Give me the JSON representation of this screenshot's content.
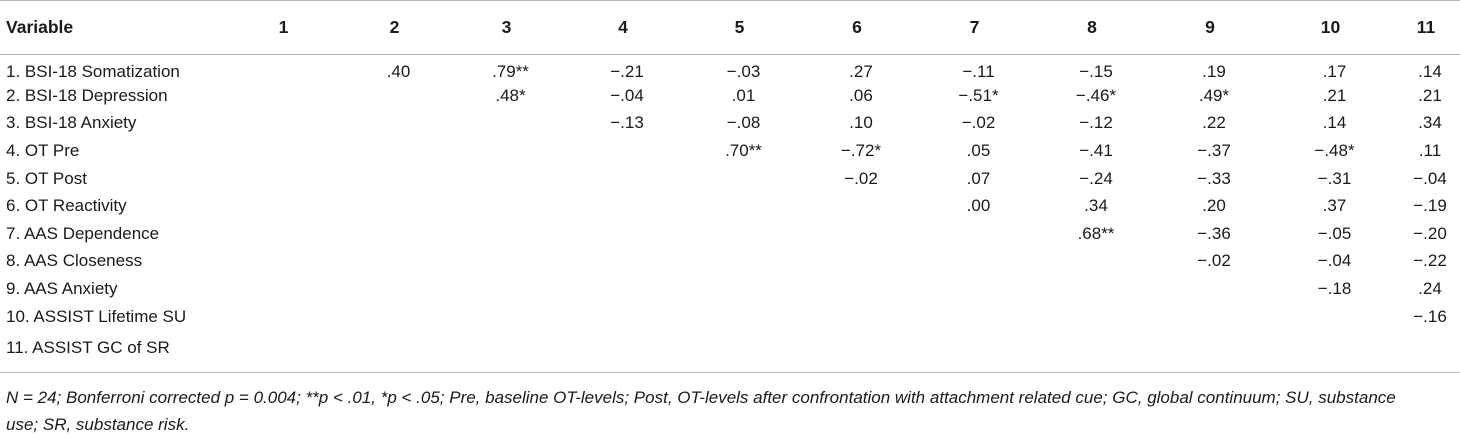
{
  "table": {
    "headers": [
      "Variable",
      "1",
      "2",
      "3",
      "4",
      "5",
      "6",
      "7",
      "8",
      "9",
      "10",
      "11"
    ],
    "rows": [
      {
        "label": "1. BSI-18 Somatization",
        "cells": [
          "",
          ".40",
          ".79**",
          "−.21",
          "−.03",
          ".27",
          "−.11",
          "−.15",
          ".19",
          ".17",
          ".14"
        ]
      },
      {
        "label": "2. BSI-18 Depression",
        "cells": [
          "",
          "",
          ".48*",
          "−.04",
          ".01",
          ".06",
          "−.51*",
          "−.46*",
          ".49*",
          ".21",
          ".21"
        ]
      },
      {
        "label": "3. BSI-18 Anxiety",
        "cells": [
          "",
          "",
          "",
          "−.13",
          "−.08",
          ".10",
          "−.02",
          "−.12",
          ".22",
          ".14",
          ".34"
        ]
      },
      {
        "label": "4. OT Pre",
        "cells": [
          "",
          "",
          "",
          "",
          ".70**",
          "−.72*",
          ".05",
          "−.41",
          "−.37",
          "−.48*",
          ".11"
        ]
      },
      {
        "label": "5. OT Post",
        "cells": [
          "",
          "",
          "",
          "",
          "",
          "−.02",
          ".07",
          "−.24",
          "−.33",
          "−.31",
          "−.04"
        ]
      },
      {
        "label": "6. OT Reactivity",
        "cells": [
          "",
          "",
          "",
          "",
          "",
          "",
          ".00",
          ".34",
          ".20",
          ".37",
          "−.19"
        ]
      },
      {
        "label": "7. AAS Dependence",
        "cells": [
          "",
          "",
          "",
          "",
          "",
          "",
          "",
          ".68**",
          "−.36",
          "−.05",
          "−.20"
        ]
      },
      {
        "label": "8. AAS Closeness",
        "cells": [
          "",
          "",
          "",
          "",
          "",
          "",
          "",
          "",
          "−.02",
          "−.04",
          "−.22"
        ]
      },
      {
        "label": "9. AAS Anxiety",
        "cells": [
          "",
          "",
          "",
          "",
          "",
          "",
          "",
          "",
          "",
          "−.18",
          ".24"
        ]
      },
      {
        "label": "10. ASSIST Lifetime SU",
        "cells": [
          "",
          "",
          "",
          "",
          "",
          "",
          "",
          "",
          "",
          "",
          "−.16"
        ]
      },
      {
        "label": "11. ASSIST GC of SR",
        "cells": [
          "",
          "",
          "",
          "",
          "",
          "",
          "",
          "",
          "",
          "",
          ""
        ]
      }
    ]
  },
  "note": {
    "line1": "N = 24; Bonferroni corrected p = 0.004; **p < .01, *p < .05; Pre, baseline OT-levels; Post, OT-levels after confrontation with attachment related cue; GC, global continuum; SU, substance",
    "line2": "use; SR, substance risk."
  }
}
